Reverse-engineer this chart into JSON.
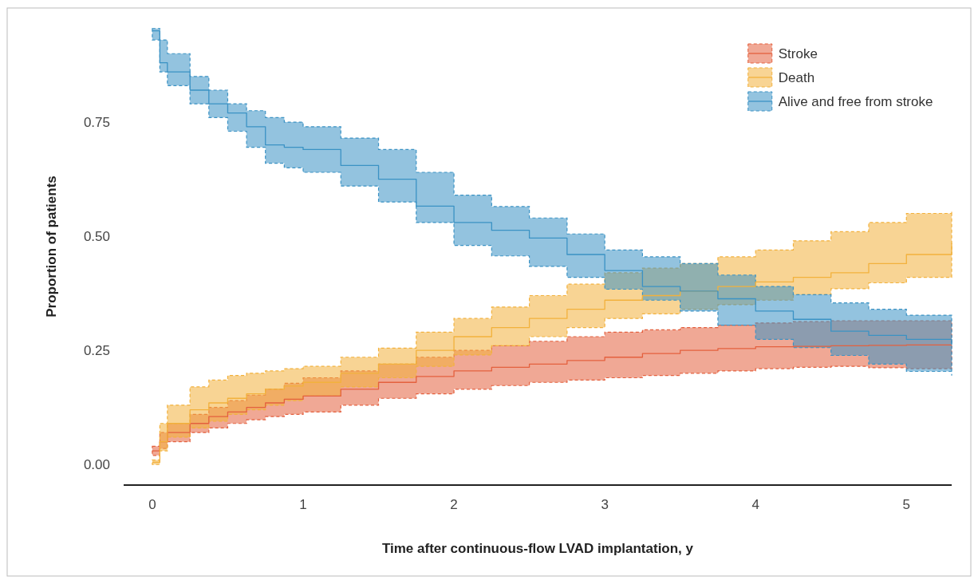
{
  "chart_data": {
    "type": "step",
    "xlabel": "Time after continuous-flow LVAD implantation, y",
    "ylabel": "Proportion of patients",
    "x": [
      0,
      0.05,
      0.1,
      0.25,
      0.375,
      0.5,
      0.625,
      0.75,
      0.875,
      1,
      1.25,
      1.5,
      1.75,
      2,
      2.25,
      2.5,
      2.75,
      3,
      3.25,
      3.5,
      3.75,
      4,
      4.25,
      4.5,
      4.75,
      5,
      5.3
    ],
    "xlim": [
      -0.19,
      5.3
    ],
    "xticks": [
      0,
      1,
      2,
      3,
      4,
      5
    ],
    "ylim": [
      -0.045,
      1.0
    ],
    "yticks": [
      {
        "value": 0,
        "label": "0.00"
      },
      {
        "value": 0.25,
        "label": "0.25"
      },
      {
        "value": 0.5,
        "label": "0.50"
      },
      {
        "value": 0.75,
        "label": "0.75"
      }
    ],
    "legend": "top right",
    "grid": false,
    "line_style": "solid",
    "series": [
      {
        "name": "Stroke",
        "color": "#e4603e",
        "values": [
          0.03,
          0.05,
          0.07,
          0.09,
          0.105,
          0.115,
          0.125,
          0.135,
          0.143,
          0.15,
          0.165,
          0.18,
          0.193,
          0.205,
          0.213,
          0.22,
          0.228,
          0.235,
          0.243,
          0.25,
          0.254,
          0.258,
          0.259,
          0.26,
          0.261,
          0.262,
          0.262
        ],
        "upper": [
          0.04,
          0.07,
          0.09,
          0.11,
          0.125,
          0.14,
          0.152,
          0.165,
          0.178,
          0.19,
          0.205,
          0.22,
          0.235,
          0.25,
          0.26,
          0.27,
          0.28,
          0.29,
          0.295,
          0.3,
          0.305,
          0.31,
          0.313,
          0.315,
          0.315,
          0.315,
          0.315
        ],
        "lower": [
          0.02,
          0.035,
          0.05,
          0.07,
          0.08,
          0.09,
          0.098,
          0.105,
          0.11,
          0.115,
          0.13,
          0.145,
          0.155,
          0.165,
          0.173,
          0.18,
          0.185,
          0.19,
          0.195,
          0.2,
          0.205,
          0.21,
          0.213,
          0.215,
          0.212,
          0.21,
          0.21
        ]
      },
      {
        "name": "Death",
        "color": "#f2b13c",
        "values": [
          0.005,
          0.05,
          0.09,
          0.12,
          0.135,
          0.145,
          0.155,
          0.165,
          0.172,
          0.18,
          0.2,
          0.22,
          0.25,
          0.28,
          0.3,
          0.32,
          0.34,
          0.36,
          0.37,
          0.38,
          0.39,
          0.4,
          0.41,
          0.42,
          0.44,
          0.46,
          0.485
        ],
        "upper": [
          0.01,
          0.09,
          0.13,
          0.17,
          0.185,
          0.195,
          0.2,
          0.205,
          0.21,
          0.215,
          0.235,
          0.255,
          0.29,
          0.32,
          0.345,
          0.37,
          0.395,
          0.42,
          0.43,
          0.44,
          0.455,
          0.47,
          0.49,
          0.51,
          0.53,
          0.55,
          0.555
        ],
        "lower": [
          0,
          0.03,
          0.06,
          0.08,
          0.095,
          0.11,
          0.12,
          0.13,
          0.14,
          0.15,
          0.17,
          0.19,
          0.215,
          0.24,
          0.26,
          0.28,
          0.3,
          0.32,
          0.33,
          0.34,
          0.35,
          0.36,
          0.372,
          0.385,
          0.398,
          0.41,
          0.415
        ]
      },
      {
        "name": "Alive and free from stroke",
        "color": "#3b92c4",
        "values": [
          0.95,
          0.88,
          0.86,
          0.82,
          0.79,
          0.77,
          0.74,
          0.7,
          0.695,
          0.69,
          0.655,
          0.625,
          0.566,
          0.53,
          0.513,
          0.496,
          0.46,
          0.425,
          0.39,
          0.38,
          0.363,
          0.336,
          0.318,
          0.292,
          0.283,
          0.274,
          0.262
        ],
        "upper": [
          0.955,
          0.93,
          0.9,
          0.85,
          0.82,
          0.79,
          0.775,
          0.76,
          0.75,
          0.74,
          0.715,
          0.69,
          0.64,
          0.59,
          0.565,
          0.54,
          0.505,
          0.47,
          0.455,
          0.44,
          0.415,
          0.39,
          0.372,
          0.354,
          0.34,
          0.327,
          0.327
        ],
        "lower": [
          0.93,
          0.86,
          0.83,
          0.79,
          0.76,
          0.73,
          0.695,
          0.66,
          0.65,
          0.64,
          0.61,
          0.575,
          0.53,
          0.48,
          0.457,
          0.434,
          0.41,
          0.384,
          0.36,
          0.336,
          0.305,
          0.274,
          0.256,
          0.239,
          0.22,
          0.204,
          0.195
        ]
      }
    ]
  }
}
